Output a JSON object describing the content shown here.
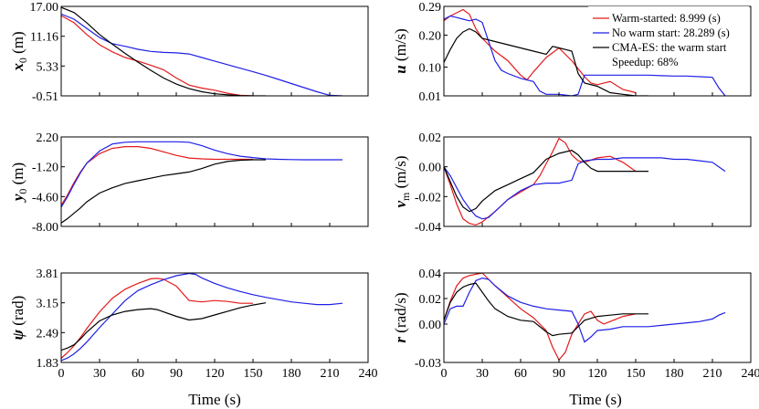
{
  "colors": {
    "red": "#e41a1c",
    "blue": "#1f1fe6",
    "black": "#000000"
  },
  "legend": {
    "placement": "top-right of u panel",
    "entries": [
      {
        "label": "Warm-started: 8.999 (s)",
        "color": "#e41a1c"
      },
      {
        "label": "No warm start: 28.289 (s)",
        "color": "#1f1fe6"
      },
      {
        "label": "CMA-ES: the warm start",
        "color": "#000000"
      }
    ],
    "note": "Speedup: 68%"
  },
  "chart_data": [
    {
      "id": "x0",
      "type": "line",
      "ylabel_main": "x",
      "ylabel_sub": "0",
      "ylabel_unit": " (m)",
      "xlim": [
        0,
        240
      ],
      "ylim": [
        -0.51,
        17.0
      ],
      "xticks": [],
      "yticks": [
        "17.00",
        "11.16",
        "5.33",
        "-0.51"
      ],
      "ytick_values": [
        17.0,
        11.16,
        5.33,
        -0.51
      ],
      "series": [
        {
          "color": "red",
          "x": [
            0,
            10,
            20,
            30,
            40,
            50,
            60,
            70,
            80,
            90,
            100,
            110,
            120,
            130,
            140,
            150
          ],
          "y": [
            15.2,
            13.8,
            11.5,
            9.5,
            8.1,
            7.0,
            6.3,
            5.5,
            4.6,
            3.0,
            1.6,
            1.0,
            0.6,
            0.0,
            -0.4,
            -0.51
          ]
        },
        {
          "color": "blue",
          "x": [
            0,
            10,
            20,
            30,
            40,
            50,
            60,
            70,
            80,
            90,
            100,
            110,
            120,
            130,
            140,
            150,
            160,
            170,
            180,
            190,
            200,
            210,
            220
          ],
          "y": [
            15.5,
            14.5,
            12.7,
            10.9,
            9.7,
            9.2,
            8.6,
            8.2,
            8.0,
            7.9,
            7.7,
            7.0,
            6.3,
            5.6,
            4.9,
            4.2,
            3.5,
            2.7,
            1.9,
            1.1,
            0.3,
            -0.4,
            -0.51
          ]
        },
        {
          "color": "black",
          "x": [
            0,
            10,
            20,
            30,
            40,
            50,
            60,
            70,
            80,
            90,
            100,
            110,
            120,
            130,
            140,
            150,
            160
          ],
          "y": [
            16.8,
            15.8,
            13.8,
            11.5,
            9.6,
            7.8,
            6.1,
            4.5,
            3.0,
            1.8,
            0.9,
            0.3,
            -0.1,
            -0.3,
            -0.45,
            -0.51,
            -0.51
          ]
        }
      ]
    },
    {
      "id": "u",
      "type": "line",
      "ylabel_main": "u",
      "ylabel_sub": "",
      "ylabel_unit": " (m/s)",
      "xlim": [
        0,
        240
      ],
      "ylim": [
        0.01,
        0.29
      ],
      "xticks": [],
      "yticks": [
        "0.29",
        "0.20",
        "0.10",
        "0.01"
      ],
      "ytick_values": [
        0.29,
        0.2,
        0.1,
        0.01
      ],
      "series": [
        {
          "color": "red",
          "x": [
            0,
            5,
            10,
            15,
            20,
            25,
            30,
            35,
            40,
            50,
            60,
            65,
            70,
            80,
            90,
            95,
            100,
            110,
            115,
            120,
            130,
            140,
            150
          ],
          "y": [
            0.245,
            0.26,
            0.27,
            0.28,
            0.265,
            0.22,
            0.19,
            0.17,
            0.15,
            0.12,
            0.075,
            0.06,
            0.085,
            0.13,
            0.16,
            0.14,
            0.12,
            0.07,
            0.05,
            0.045,
            0.055,
            0.03,
            0.02
          ]
        },
        {
          "color": "blue",
          "x": [
            0,
            5,
            10,
            15,
            20,
            25,
            30,
            35,
            40,
            45,
            50,
            60,
            70,
            75,
            80,
            90,
            100,
            105,
            110,
            120,
            130,
            140,
            150,
            160,
            170,
            180,
            190,
            200,
            210,
            215,
            220
          ],
          "y": [
            0.25,
            0.26,
            0.255,
            0.25,
            0.245,
            0.25,
            0.24,
            0.18,
            0.12,
            0.09,
            0.08,
            0.065,
            0.055,
            0.025,
            0.015,
            0.015,
            0.01,
            0.015,
            0.075,
            0.075,
            0.075,
            0.075,
            0.075,
            0.075,
            0.073,
            0.072,
            0.072,
            0.07,
            0.068,
            0.035,
            0.01
          ]
        },
        {
          "color": "black",
          "x": [
            0,
            5,
            10,
            15,
            20,
            25,
            30,
            40,
            50,
            60,
            70,
            80,
            85,
            90,
            95,
            100,
            105,
            110,
            120,
            130,
            140,
            150,
            160
          ],
          "y": [
            0.115,
            0.155,
            0.19,
            0.21,
            0.22,
            0.21,
            0.19,
            0.18,
            0.17,
            0.16,
            0.15,
            0.14,
            0.165,
            0.16,
            0.155,
            0.15,
            0.08,
            0.05,
            0.04,
            0.02,
            0.015,
            0.01,
            0.01
          ]
        }
      ]
    },
    {
      "id": "y0",
      "type": "line",
      "ylabel_main": "y",
      "ylabel_sub": "0",
      "ylabel_unit": " (m)",
      "xlim": [
        0,
        240
      ],
      "ylim": [
        -8.0,
        2.2
      ],
      "xticks": [],
      "yticks": [
        "2.20",
        "-1.20",
        "-4.60",
        "-8.00"
      ],
      "ytick_values": [
        2.2,
        -1.2,
        -4.6,
        -8.0
      ],
      "series": [
        {
          "color": "red",
          "x": [
            0,
            5,
            10,
            15,
            20,
            30,
            40,
            50,
            60,
            70,
            80,
            90,
            100,
            110,
            120,
            130,
            140,
            150
          ],
          "y": [
            -5.6,
            -4.4,
            -3.0,
            -1.8,
            -0.8,
            0.3,
            0.9,
            1.1,
            1.1,
            0.9,
            0.5,
            0.1,
            -0.2,
            -0.3,
            -0.35,
            -0.35,
            -0.35,
            -0.35
          ]
        },
        {
          "color": "blue",
          "x": [
            0,
            5,
            10,
            15,
            20,
            30,
            40,
            50,
            60,
            70,
            80,
            90,
            100,
            110,
            120,
            130,
            140,
            150,
            160,
            170,
            180,
            190,
            200,
            210,
            220
          ],
          "y": [
            -5.8,
            -4.6,
            -3.2,
            -1.9,
            -0.8,
            0.6,
            1.4,
            1.6,
            1.65,
            1.65,
            1.65,
            1.65,
            1.6,
            1.2,
            0.7,
            0.3,
            0.0,
            -0.15,
            -0.3,
            -0.35,
            -0.38,
            -0.4,
            -0.4,
            -0.4,
            -0.4
          ]
        },
        {
          "color": "black",
          "x": [
            0,
            5,
            10,
            15,
            20,
            30,
            40,
            50,
            60,
            70,
            80,
            90,
            100,
            110,
            120,
            130,
            140,
            150,
            160
          ],
          "y": [
            -7.6,
            -7.1,
            -6.5,
            -5.9,
            -5.2,
            -4.2,
            -3.6,
            -3.1,
            -2.8,
            -2.5,
            -2.2,
            -2.0,
            -1.8,
            -1.4,
            -0.9,
            -0.6,
            -0.45,
            -0.4,
            -0.4
          ]
        }
      ]
    },
    {
      "id": "vm",
      "type": "line",
      "ylabel_main": "v",
      "ylabel_sub": "m",
      "ylabel_unit": " (m/s)",
      "xlim": [
        0,
        240
      ],
      "ylim": [
        -0.04,
        0.02
      ],
      "xticks": [],
      "yticks": [
        "0.02",
        "0.00",
        "-0.02",
        "-0.04"
      ],
      "ytick_values": [
        0.02,
        0.0,
        -0.02,
        -0.04
      ],
      "series": [
        {
          "color": "red",
          "x": [
            0,
            5,
            10,
            15,
            20,
            25,
            30,
            40,
            50,
            60,
            70,
            75,
            80,
            85,
            90,
            95,
            100,
            105,
            110,
            120,
            130,
            140,
            150
          ],
          "y": [
            0.0,
            -0.012,
            -0.025,
            -0.035,
            -0.038,
            -0.039,
            -0.037,
            -0.03,
            -0.022,
            -0.017,
            -0.012,
            -0.006,
            0.002,
            0.01,
            0.019,
            0.016,
            0.008,
            0.004,
            0.003,
            0.006,
            0.007,
            0.003,
            -0.003
          ]
        },
        {
          "color": "blue",
          "x": [
            0,
            5,
            10,
            15,
            20,
            25,
            30,
            35,
            40,
            50,
            60,
            70,
            80,
            90,
            100,
            105,
            110,
            120,
            130,
            140,
            150,
            160,
            170,
            180,
            190,
            200,
            210,
            215,
            220
          ],
          "y": [
            0.0,
            -0.006,
            -0.014,
            -0.022,
            -0.028,
            -0.033,
            -0.035,
            -0.034,
            -0.03,
            -0.022,
            -0.016,
            -0.012,
            -0.011,
            -0.011,
            -0.009,
            0.002,
            0.004,
            0.005,
            0.005,
            0.006,
            0.006,
            0.006,
            0.006,
            0.005,
            0.005,
            0.004,
            0.003,
            0.0,
            -0.003
          ]
        },
        {
          "color": "black",
          "x": [
            0,
            5,
            10,
            15,
            20,
            25,
            30,
            40,
            50,
            60,
            70,
            80,
            90,
            100,
            105,
            110,
            115,
            120,
            130,
            140,
            150,
            160
          ],
          "y": [
            0.0,
            -0.01,
            -0.02,
            -0.027,
            -0.03,
            -0.028,
            -0.023,
            -0.016,
            -0.012,
            -0.008,
            -0.004,
            0.005,
            0.009,
            0.011,
            0.008,
            0.003,
            -0.001,
            -0.003,
            -0.003,
            -0.003,
            -0.003,
            -0.003
          ]
        }
      ]
    },
    {
      "id": "psi",
      "type": "line",
      "ylabel_main": "ψ",
      "ylabel_sub": "",
      "ylabel_unit": " (rad)",
      "xlim": [
        0,
        240
      ],
      "ylim": [
        1.83,
        3.81
      ],
      "xticks": [
        "0",
        "30",
        "60",
        "90",
        "120",
        "150",
        "180",
        "210",
        "240"
      ],
      "yticks": [
        "3.81",
        "3.15",
        "2.49",
        "1.83"
      ],
      "ytick_values": [
        3.81,
        3.15,
        2.49,
        1.83
      ],
      "series": [
        {
          "color": "red",
          "x": [
            0,
            5,
            10,
            15,
            20,
            30,
            40,
            50,
            60,
            70,
            75,
            80,
            90,
            100,
            110,
            120,
            130,
            140,
            150
          ],
          "y": [
            1.92,
            2.05,
            2.2,
            2.38,
            2.58,
            2.95,
            3.25,
            3.45,
            3.58,
            3.68,
            3.69,
            3.67,
            3.52,
            3.2,
            3.17,
            3.2,
            3.18,
            3.14,
            3.14
          ]
        },
        {
          "color": "blue",
          "x": [
            0,
            5,
            10,
            15,
            20,
            30,
            40,
            50,
            60,
            70,
            80,
            90,
            100,
            105,
            110,
            120,
            130,
            140,
            150,
            160,
            170,
            180,
            190,
            200,
            210,
            220
          ],
          "y": [
            1.87,
            1.93,
            2.02,
            2.14,
            2.28,
            2.6,
            2.9,
            3.2,
            3.42,
            3.55,
            3.66,
            3.75,
            3.8,
            3.78,
            3.7,
            3.58,
            3.48,
            3.4,
            3.33,
            3.27,
            3.22,
            3.17,
            3.14,
            3.11,
            3.11,
            3.14
          ]
        },
        {
          "color": "black",
          "x": [
            0,
            5,
            10,
            15,
            20,
            30,
            40,
            50,
            60,
            70,
            75,
            80,
            90,
            100,
            110,
            120,
            130,
            140,
            150,
            160
          ],
          "y": [
            2.1,
            2.15,
            2.22,
            2.35,
            2.5,
            2.75,
            2.88,
            2.96,
            3.0,
            3.02,
            3.0,
            2.95,
            2.85,
            2.77,
            2.8,
            2.88,
            2.96,
            3.04,
            3.1,
            3.15
          ]
        }
      ]
    },
    {
      "id": "r",
      "type": "line",
      "ylabel_main": "r",
      "ylabel_sub": "",
      "ylabel_unit": " (rad/s)",
      "xlim": [
        0,
        240
      ],
      "ylim": [
        -0.03,
        0.04
      ],
      "xticks": [
        "0",
        "30",
        "60",
        "90",
        "120",
        "150",
        "180",
        "210",
        "240"
      ],
      "yticks": [
        "0.04",
        "0.02",
        "0.00",
        "-0.03"
      ],
      "ytick_values": [
        0.04,
        0.02,
        0.0,
        -0.03
      ],
      "series": [
        {
          "color": "red",
          "x": [
            0,
            5,
            10,
            15,
            20,
            25,
            30,
            35,
            40,
            50,
            60,
            70,
            80,
            85,
            90,
            95,
            100,
            110,
            115,
            120,
            125,
            130,
            140,
            150
          ],
          "y": [
            0.003,
            0.018,
            0.03,
            0.036,
            0.038,
            0.039,
            0.04,
            0.035,
            0.03,
            0.021,
            0.012,
            0.005,
            -0.005,
            -0.018,
            -0.028,
            -0.022,
            -0.008,
            0.008,
            0.01,
            0.003,
            0.0,
            0.002,
            0.006,
            0.008
          ]
        },
        {
          "color": "blue",
          "x": [
            0,
            5,
            10,
            15,
            20,
            25,
            30,
            35,
            40,
            50,
            60,
            70,
            80,
            90,
            100,
            105,
            110,
            115,
            120,
            130,
            140,
            150,
            160,
            170,
            180,
            190,
            200,
            210,
            215,
            220
          ],
          "y": [
            0.0,
            0.012,
            0.014,
            0.014,
            0.025,
            0.034,
            0.036,
            0.035,
            0.03,
            0.022,
            0.017,
            0.014,
            0.012,
            0.011,
            0.01,
            0.0,
            -0.014,
            -0.01,
            -0.005,
            -0.004,
            -0.002,
            -0.002,
            -0.002,
            -0.001,
            0.0,
            0.001,
            0.002,
            0.004,
            0.007,
            0.009
          ]
        },
        {
          "color": "black",
          "x": [
            0,
            5,
            10,
            15,
            20,
            25,
            30,
            35,
            40,
            50,
            60,
            70,
            80,
            85,
            90,
            100,
            110,
            120,
            130,
            140,
            150,
            160
          ],
          "y": [
            0.003,
            0.017,
            0.025,
            0.029,
            0.031,
            0.032,
            0.025,
            0.018,
            0.012,
            0.006,
            0.003,
            0.002,
            -0.006,
            -0.009,
            -0.008,
            -0.007,
            0.003,
            0.006,
            0.007,
            0.008,
            0.008,
            0.008
          ]
        }
      ]
    }
  ],
  "xlabels": {
    "left": "Time (s)",
    "right": "Time (s)"
  }
}
